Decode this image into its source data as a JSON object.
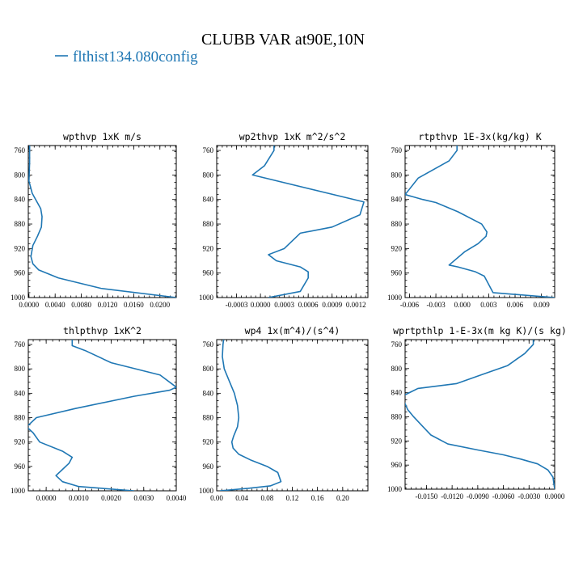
{
  "figure": {
    "title": "CLUBB VAR at90E,10N",
    "legend_label": "flthist134.080config",
    "series_color": "#1f77b4"
  },
  "chart_data": [
    {
      "type": "line",
      "title": "wpthvp  1xK m/s",
      "x_ticks": [
        "0.0000",
        "0.0040",
        "0.0080",
        "0.0120",
        "0.0160",
        "0.0200"
      ],
      "x_tick_values": [
        0,
        0.004,
        0.008,
        0.012,
        0.016,
        0.02
      ],
      "xlim": [
        -0.0001,
        0.0225
      ],
      "y_ticks": [
        "760",
        "800",
        "840",
        "880",
        "920",
        "960",
        "1000"
      ],
      "y_tick_values": [
        760,
        800,
        840,
        880,
        920,
        960,
        1000
      ],
      "ylim": [
        1000,
        752
      ],
      "series": [
        {
          "x": [
            0.0001,
            0.0001,
            0.0,
            0.0005,
            0.0018,
            0.002,
            0.0019,
            0.0013,
            0.0006,
            0.0003,
            0.0006,
            0.0015,
            0.0045,
            0.011,
            0.0225
          ],
          "y": [
            752,
            780,
            810,
            830,
            855,
            868,
            885,
            900,
            915,
            933,
            945,
            955,
            968,
            985,
            1000
          ]
        }
      ]
    },
    {
      "type": "line",
      "title": "wp2thvp  1xK m^2/s^2",
      "x_ticks": [
        "-0.0003",
        "0.0000",
        "0.0003",
        "0.0006",
        "0.0009",
        "0.0012"
      ],
      "x_tick_values": [
        -0.0003,
        0.0,
        0.0003,
        0.0006,
        0.0009,
        0.0012
      ],
      "xlim": [
        -0.00055,
        0.00135
      ],
      "y_ticks": [
        "760",
        "800",
        "840",
        "880",
        "920",
        "960",
        "1000"
      ],
      "y_tick_values": [
        760,
        800,
        840,
        880,
        920,
        960,
        1000
      ],
      "ylim": [
        1000,
        752
      ],
      "series": [
        {
          "x": [
            0.00017,
            0.00017,
            5e-05,
            -0.0001,
            0.0013,
            0.00125,
            0.0009,
            0.0005,
            0.0003,
            0.0001,
            0.0002,
            0.0005,
            0.0006,
            0.0006,
            0.0005,
            0.0001
          ],
          "y": [
            752,
            760,
            785,
            800,
            844,
            865,
            885,
            895,
            920,
            930,
            940,
            950,
            958,
            968,
            990,
            1000
          ]
        }
      ]
    },
    {
      "type": "line",
      "title": "rtpthvp  1E-3x(kg/kg) K",
      "x_ticks": [
        "-0.006",
        "-0.003",
        "0.000",
        "0.003",
        "0.006",
        "0.009"
      ],
      "x_tick_values": [
        -0.006,
        -0.003,
        0.0,
        0.003,
        0.006,
        0.009
      ],
      "xlim": [
        -0.0065,
        0.0105
      ],
      "y_ticks": [
        "760",
        "800",
        "840",
        "880",
        "920",
        "960",
        "1000"
      ],
      "y_tick_values": [
        760,
        800,
        840,
        880,
        920,
        960,
        1000
      ],
      "ylim": [
        1000,
        752
      ],
      "series": [
        {
          "x": [
            -0.0006,
            -0.0006,
            -0.0015,
            -0.005,
            -0.0065,
            -0.0045,
            -0.003,
            -0.0005,
            0.0022,
            0.0028,
            0.0027,
            0.0018,
            0.0003,
            -0.0015,
            -0.0005,
            0.0015,
            0.0025,
            0.0035,
            0.0105
          ],
          "y": [
            752,
            760,
            777,
            805,
            832,
            840,
            845,
            860,
            880,
            893,
            900,
            912,
            925,
            947,
            950,
            958,
            965,
            992,
            1000
          ]
        }
      ]
    },
    {
      "type": "line",
      "title": "thlpthvp  1xK^2",
      "x_ticks": [
        "0.0000",
        "0.0010",
        "0.0020",
        "0.0030",
        "0.0040"
      ],
      "x_tick_values": [
        0.0,
        0.001,
        0.002,
        0.003,
        0.004
      ],
      "xlim": [
        -0.00055,
        0.004
      ],
      "y_ticks": [
        "760",
        "800",
        "840",
        "880",
        "920",
        "960",
        "1000"
      ],
      "y_tick_values": [
        760,
        800,
        840,
        880,
        920,
        960,
        1000
      ],
      "ylim": [
        1000,
        752
      ],
      "series": [
        {
          "x": [
            0.0008,
            0.0008,
            0.0012,
            0.002,
            0.0035,
            0.004,
            0.0038,
            0.0027,
            0.0009,
            -0.0003,
            -0.0006,
            -0.0004,
            -0.0002,
            0.0005,
            0.0008,
            0.0007,
            0.0005,
            0.0003,
            0.0005,
            0.001,
            0.0027
          ],
          "y": [
            752,
            762,
            770,
            790,
            810,
            830,
            835,
            845,
            865,
            880,
            895,
            905,
            920,
            935,
            945,
            955,
            965,
            975,
            985,
            993,
            1000
          ]
        }
      ]
    },
    {
      "type": "line",
      "title": "wp4  1x(m^4)/(s^4)",
      "x_ticks": [
        "0.00",
        "0.04",
        "0.08",
        "0.12",
        "0.16",
        "0.20"
      ],
      "x_tick_values": [
        0.0,
        0.04,
        0.08,
        0.12,
        0.16,
        0.2
      ],
      "xlim": [
        0.0,
        0.24
      ],
      "y_ticks": [
        "760",
        "800",
        "840",
        "880",
        "920",
        "960",
        "1000"
      ],
      "y_tick_values": [
        760,
        800,
        840,
        880,
        920,
        960,
        1000
      ],
      "ylim": [
        1000,
        752
      ],
      "series": [
        {
          "x": [
            0.011,
            0.01,
            0.009,
            0.012,
            0.02,
            0.028,
            0.033,
            0.035,
            0.033,
            0.027,
            0.024,
            0.026,
            0.035,
            0.055,
            0.08,
            0.097,
            0.102,
            0.085,
            0.05,
            0.005
          ],
          "y": [
            752,
            760,
            780,
            800,
            820,
            840,
            860,
            880,
            895,
            910,
            920,
            930,
            940,
            950,
            960,
            970,
            985,
            992,
            996,
            1000
          ]
        }
      ]
    },
    {
      "type": "line",
      "title": "wprtpthlp  1-E-3x(m kg K)/(s kg)",
      "x_ticks": [
        "-0.0150",
        "-0.0120",
        "-0.0090",
        "-0.0060",
        "-0.0030",
        "0.0000"
      ],
      "x_tick_values": [
        -0.015,
        -0.012,
        -0.009,
        -0.006,
        -0.003,
        0.0
      ],
      "xlim": [
        -0.0175,
        0.0
      ],
      "y_ticks": [
        "760",
        "800",
        "840",
        "880",
        "920",
        "960",
        "1000"
      ],
      "y_tick_values": [
        760,
        800,
        840,
        880,
        920,
        960,
        1000
      ],
      "ylim": [
        1000,
        752
      ],
      "series": [
        {
          "x": [
            -0.0025,
            -0.0025,
            -0.0035,
            -0.0055,
            -0.0085,
            -0.0115,
            -0.016,
            -0.017,
            -0.0177,
            -0.0176,
            -0.0172,
            -0.0165,
            -0.0155,
            -0.0145,
            -0.0125,
            -0.009,
            -0.006,
            -0.004,
            -0.002,
            -0.0008,
            -0.0002,
            0.0
          ],
          "y": [
            752,
            760,
            775,
            795,
            810,
            825,
            833,
            840,
            845,
            855,
            868,
            880,
            895,
            910,
            925,
            935,
            943,
            950,
            958,
            968,
            980,
            1000
          ]
        }
      ]
    }
  ]
}
